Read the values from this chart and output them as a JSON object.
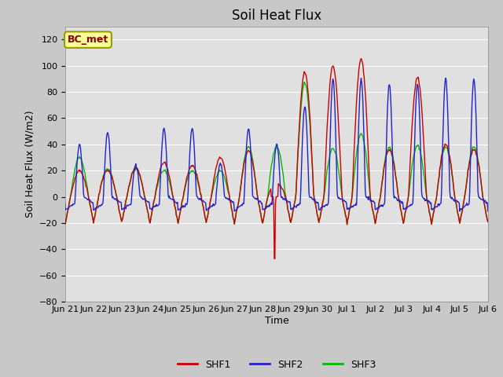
{
  "title": "Soil Heat Flux",
  "ylabel": "Soil Heat Flux (W/m2)",
  "xlabel": "Time",
  "ylim": [
    -80,
    130
  ],
  "yticks": [
    -80,
    -60,
    -40,
    -20,
    0,
    20,
    40,
    60,
    80,
    100,
    120
  ],
  "colors": {
    "SHF1": "#cc0000",
    "SHF2": "#2222cc",
    "SHF3": "#00bb00"
  },
  "background_color": "#c8c8c8",
  "plot_bg_color": "#e0e0e0",
  "grid_color": "#ffffff",
  "annotation_text": "BC_met",
  "annotation_bg": "#ffff99",
  "annotation_border": "#999900",
  "annotation_text_color": "#880000",
  "xtick_labels": [
    "Jun 21",
    "Jun 22",
    "Jun 23",
    "Jun 24",
    "Jun 25",
    "Jun 26",
    "Jun 27",
    "Jun 28",
    "Jun 29",
    "Jun 30",
    "Jul 1",
    "Jul 2",
    "Jul 3",
    "Jul 4",
    "Jul 5",
    "Jul 6"
  ],
  "title_fontsize": 12,
  "label_fontsize": 9,
  "tick_fontsize": 8
}
